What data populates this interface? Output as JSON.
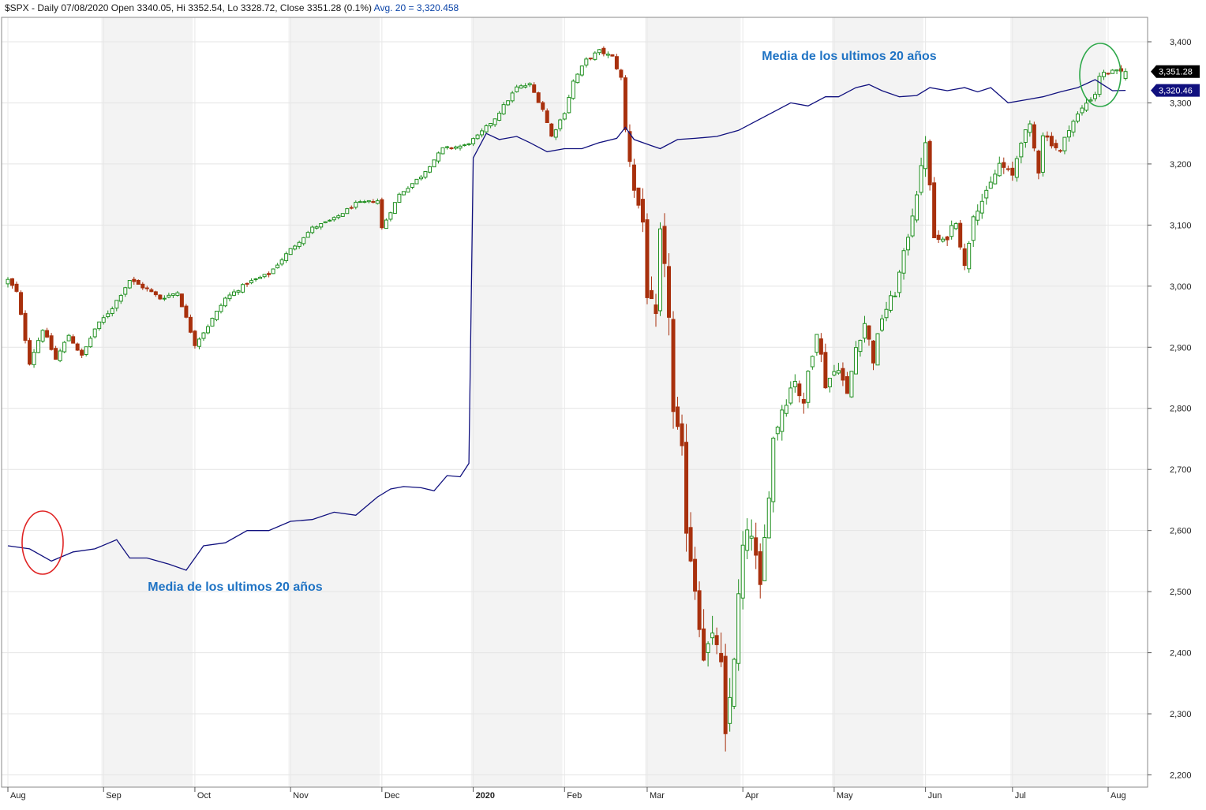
{
  "header": {
    "symbol": "$SPX",
    "info": " - Daily 07/08/2020 Open 3340.05, Hi 3352.54, Lo 3328.72, Close 3351.28 (0.1%)",
    "avg_text": " Avg. 20 = 3,320.458"
  },
  "annotations": {
    "top_label": "Media de los ultimos 20 años",
    "bottom_label": "Media de los ultimos 20 años"
  },
  "colors": {
    "up": "#1f8f1f",
    "down": "#a8300d",
    "avg_line": "#10107e",
    "avg_text": "#0b44a8",
    "annotation_text": "#1f73c4",
    "circle_left": "#e02424",
    "circle_right": "#2ea84a",
    "price_badge": "#000000",
    "avg_badge": "#10107e"
  },
  "chart_data": {
    "type": "candlestick",
    "title": "$SPX - Daily 07/08/2020 Open 3340.05, Hi 3352.54, Lo 3328.72, Close 3351.28 (0.1%) Avg. 20 = 3,320.458",
    "ylim": [
      2180,
      3440
    ],
    "y_ticks": [
      2200,
      2300,
      2400,
      2500,
      2600,
      2700,
      2800,
      2900,
      3000,
      3100,
      3200,
      3300,
      3400
    ],
    "y_tick_labels": [
      "2,200",
      "2,300",
      "2,400",
      "2,500",
      "2,600",
      "2,700",
      "2,800",
      "2,900",
      "3,000",
      "3,100",
      "3,200",
      "3,300",
      "3,400"
    ],
    "x_labels": [
      "Aug",
      "Sep",
      "Oct",
      "Nov",
      "Dec",
      "2020",
      "Feb",
      "Mar",
      "Apr",
      "May",
      "Jun",
      "Jul",
      "Aug"
    ],
    "x_label_bold": [
      false,
      false,
      false,
      false,
      false,
      true,
      false,
      false,
      false,
      false,
      false,
      false,
      false
    ],
    "x_label_positions": [
      0,
      22,
      43,
      65,
      86,
      107,
      128,
      147,
      169,
      190,
      211,
      231,
      253
    ],
    "n_bars": 258,
    "grid": true,
    "last_price": 3351.28,
    "last_price_label": "3,351.28",
    "last_avg": 3320.46,
    "last_avg_label": "3,320.46",
    "series": [
      {
        "kind": "candles",
        "name": "$SPX",
        "anchors": [
          [
            0,
            3010
          ],
          [
            2,
            2990
          ],
          [
            5,
            2875
          ],
          [
            8,
            2930
          ],
          [
            11,
            2880
          ],
          [
            14,
            2920
          ],
          [
            17,
            2885
          ],
          [
            20,
            2930
          ],
          [
            24,
            2965
          ],
          [
            28,
            3010
          ],
          [
            32,
            2995
          ],
          [
            35,
            2980
          ],
          [
            39,
            2990
          ],
          [
            43,
            2905
          ],
          [
            46,
            2935
          ],
          [
            50,
            2980
          ],
          [
            55,
            3005
          ],
          [
            60,
            3020
          ],
          [
            65,
            3060
          ],
          [
            70,
            3095
          ],
          [
            75,
            3110
          ],
          [
            80,
            3135
          ],
          [
            85,
            3140
          ],
          [
            86,
            3095
          ],
          [
            90,
            3150
          ],
          [
            95,
            3180
          ],
          [
            100,
            3225
          ],
          [
            105,
            3230
          ],
          [
            108,
            3245
          ],
          [
            112,
            3275
          ],
          [
            117,
            3325
          ],
          [
            120,
            3330
          ],
          [
            123,
            3290
          ],
          [
            125,
            3245
          ],
          [
            128,
            3285
          ],
          [
            130,
            3335
          ],
          [
            133,
            3370
          ],
          [
            136,
            3385
          ],
          [
            139,
            3375
          ],
          [
            141,
            3340
          ],
          [
            142,
            3255
          ],
          [
            144,
            3160
          ],
          [
            146,
            3105
          ],
          [
            147,
            2990
          ],
          [
            149,
            2940
          ],
          [
            150,
            3080
          ],
          [
            152,
            2960
          ],
          [
            153,
            2790
          ],
          [
            155,
            2720
          ],
          [
            156,
            2610
          ],
          [
            158,
            2510
          ],
          [
            160,
            2400
          ],
          [
            163,
            2420
          ],
          [
            164,
            2370
          ],
          [
            165,
            2250
          ],
          [
            167,
            2400
          ],
          [
            169,
            2570
          ],
          [
            171,
            2600
          ],
          [
            173,
            2500
          ],
          [
            176,
            2750
          ],
          [
            178,
            2800
          ],
          [
            181,
            2850
          ],
          [
            183,
            2800
          ],
          [
            184,
            2860
          ],
          [
            186,
            2930
          ],
          [
            188,
            2840
          ],
          [
            191,
            2870
          ],
          [
            193,
            2820
          ],
          [
            195,
            2900
          ],
          [
            197,
            2940
          ],
          [
            199,
            2880
          ],
          [
            201,
            2950
          ],
          [
            204,
            2990
          ],
          [
            206,
            3050
          ],
          [
            208,
            3120
          ],
          [
            210,
            3190
          ],
          [
            211,
            3240
          ],
          [
            213,
            3080
          ],
          [
            215,
            3070
          ],
          [
            218,
            3110
          ],
          [
            220,
            3030
          ],
          [
            222,
            3120
          ],
          [
            225,
            3150
          ],
          [
            228,
            3200
          ],
          [
            231,
            3180
          ],
          [
            233,
            3240
          ],
          [
            235,
            3260
          ],
          [
            237,
            3190
          ],
          [
            238,
            3250
          ],
          [
            240,
            3235
          ],
          [
            242,
            3220
          ],
          [
            244,
            3260
          ],
          [
            246,
            3280
          ],
          [
            248,
            3300
          ],
          [
            250,
            3315
          ],
          [
            251,
            3345
          ],
          [
            253,
            3350
          ],
          [
            257,
            3351.28
          ]
        ],
        "volatility": [
          [
            0,
            12
          ],
          [
            40,
            10
          ],
          [
            85,
            8
          ],
          [
            140,
            10
          ],
          [
            146,
            40
          ],
          [
            150,
            60
          ],
          [
            165,
            75
          ],
          [
            175,
            45
          ],
          [
            190,
            30
          ],
          [
            212,
            28
          ],
          [
            240,
            20
          ],
          [
            257,
            12
          ]
        ]
      },
      {
        "kind": "line",
        "name": "Avg. 20",
        "points": [
          [
            0,
            2575
          ],
          [
            5,
            2570
          ],
          [
            10,
            2550
          ],
          [
            15,
            2565
          ],
          [
            20,
            2570
          ],
          [
            25,
            2585
          ],
          [
            28,
            2555
          ],
          [
            32,
            2555
          ],
          [
            37,
            2545
          ],
          [
            41,
            2535
          ],
          [
            45,
            2575
          ],
          [
            50,
            2580
          ],
          [
            55,
            2600
          ],
          [
            60,
            2600
          ],
          [
            65,
            2615
          ],
          [
            70,
            2618
          ],
          [
            75,
            2630
          ],
          [
            80,
            2625
          ],
          [
            85,
            2655
          ],
          [
            88,
            2668
          ],
          [
            91,
            2672
          ],
          [
            95,
            2670
          ],
          [
            98,
            2665
          ],
          [
            101,
            2690
          ],
          [
            104,
            2688
          ],
          [
            106,
            2710
          ],
          [
            107,
            3210
          ],
          [
            110,
            3250
          ],
          [
            113,
            3240
          ],
          [
            117,
            3245
          ],
          [
            120,
            3235
          ],
          [
            124,
            3220
          ],
          [
            128,
            3225
          ],
          [
            132,
            3225
          ],
          [
            136,
            3235
          ],
          [
            140,
            3242
          ],
          [
            142,
            3260
          ],
          [
            144,
            3240
          ],
          [
            148,
            3230
          ],
          [
            150,
            3225
          ],
          [
            154,
            3240
          ],
          [
            158,
            3242
          ],
          [
            163,
            3245
          ],
          [
            168,
            3255
          ],
          [
            172,
            3270
          ],
          [
            176,
            3285
          ],
          [
            180,
            3300
          ],
          [
            184,
            3295
          ],
          [
            188,
            3310
          ],
          [
            191,
            3310
          ],
          [
            195,
            3325
          ],
          [
            198,
            3330
          ],
          [
            201,
            3320
          ],
          [
            205,
            3310
          ],
          [
            209,
            3312
          ],
          [
            212,
            3325
          ],
          [
            216,
            3320
          ],
          [
            220,
            3325
          ],
          [
            223,
            3318
          ],
          [
            226,
            3325
          ],
          [
            230,
            3300
          ],
          [
            234,
            3305
          ],
          [
            238,
            3310
          ],
          [
            242,
            3318
          ],
          [
            246,
            3325
          ],
          [
            250,
            3338
          ],
          [
            254,
            3320
          ],
          [
            257,
            3320.46
          ]
        ]
      }
    ]
  }
}
